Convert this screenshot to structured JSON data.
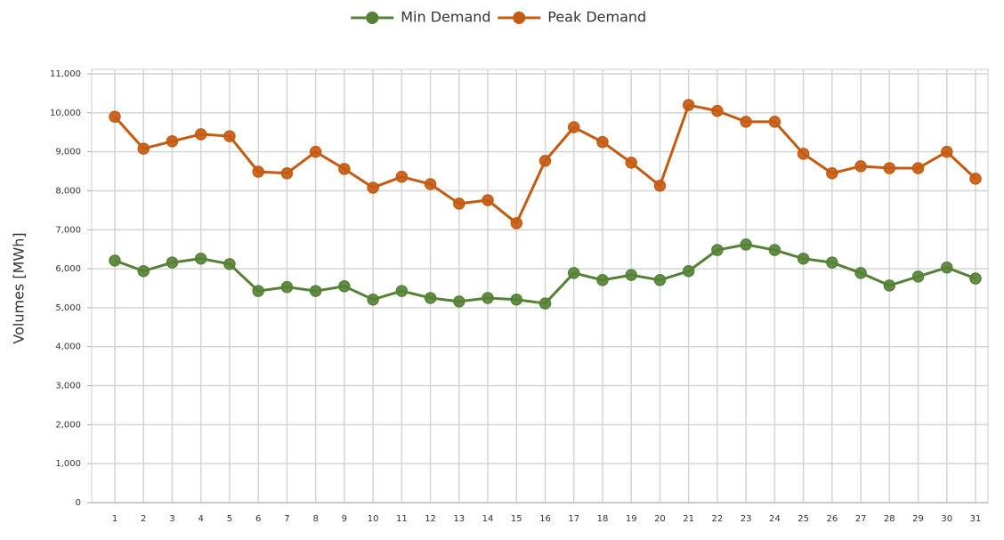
{
  "chart_data": {
    "type": "line",
    "y_label": "Volumes [MWh]",
    "categories": [
      1,
      2,
      3,
      4,
      5,
      6,
      7,
      8,
      9,
      10,
      11,
      12,
      13,
      14,
      15,
      16,
      17,
      18,
      19,
      20,
      21,
      22,
      23,
      24,
      25,
      26,
      27,
      28,
      29,
      30,
      31
    ],
    "series": [
      {
        "name": "Min Demand",
        "color": "#548235",
        "values": [
          6210,
          5940,
          6160,
          6260,
          6120,
          5430,
          5530,
          5430,
          5550,
          5210,
          5430,
          5250,
          5160,
          5250,
          5210,
          5110,
          5890,
          5710,
          5840,
          5710,
          5940,
          6480,
          6620,
          6480,
          6260,
          6160,
          5890,
          5570,
          5800,
          6030,
          5750
        ]
      },
      {
        "name": "Peak Demand",
        "color": "#c55a11",
        "values": [
          9900,
          9080,
          9270,
          9450,
          9400,
          8490,
          8450,
          9000,
          8560,
          8080,
          8360,
          8170,
          7670,
          7760,
          7170,
          8770,
          9630,
          9250,
          8720,
          8130,
          10200,
          10050,
          9770,
          9770,
          8950,
          8450,
          8630,
          8580,
          8580,
          9000,
          8310
        ]
      }
    ],
    "ylim": [
      0,
      11000
    ],
    "yticks": [
      0,
      {
        "value": 1000,
        "label": "1,000"
      },
      {
        "value": 2000,
        "label": "2,000"
      },
      {
        "value": 3000,
        "label": "3,000"
      },
      {
        "value": 4000,
        "label": "4,000"
      },
      {
        "value": 5000,
        "label": "5,000"
      },
      {
        "value": 6000,
        "label": "6,000"
      },
      {
        "value": 7000,
        "label": "7,000"
      },
      {
        "value": 8000,
        "label": "8,000"
      },
      {
        "value": 9000,
        "label": "9,000"
      },
      {
        "value": 10000,
        "label": "10,000"
      },
      {
        "value": 11000,
        "label": "11,000"
      }
    ],
    "grid": true,
    "legend": "top"
  }
}
